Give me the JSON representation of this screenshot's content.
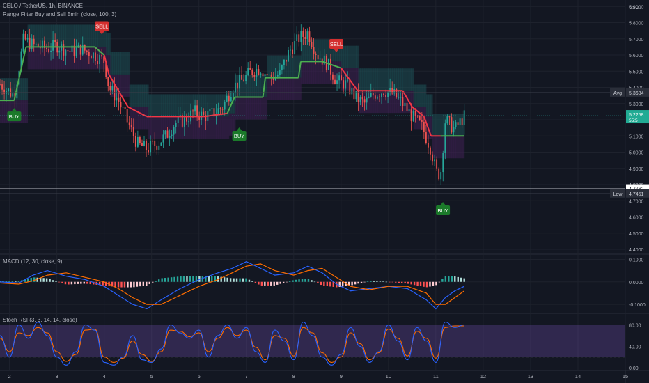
{
  "chart_data": {
    "type": "candlestick",
    "symbol_line": "CELO / TetherUS, 1h, BINANCE",
    "indicator_line": "Range Filter Buy and Sell 5min (close, 100, 3)",
    "currency": "USDT",
    "price_axis": {
      "min": 4.4,
      "max": 5.9,
      "ticks": [
        "5.9000",
        "5.8000",
        "5.7000",
        "5.6000",
        "5.5000",
        "5.4000",
        "5.3000",
        "5.2000",
        "5.1000",
        "5.0000",
        "4.9000",
        "4.8000",
        "4.7000",
        "4.6000",
        "4.5000",
        "4.4000"
      ]
    },
    "x_axis": {
      "min": 1.8,
      "max": 15,
      "ticks": [
        2,
        3,
        4,
        5,
        6,
        7,
        8,
        9,
        10,
        11,
        12,
        13,
        14,
        15
      ],
      "tick_labels": [
        "2",
        "3",
        "4",
        "5",
        "6",
        "7",
        "8",
        "9",
        "10",
        "11",
        "12",
        "13",
        "14",
        "15"
      ]
    },
    "price_labels": {
      "high": {
        "label": "High",
        "value": "5.9828",
        "price": 5.9828
      },
      "avg": {
        "label": "Avg",
        "value": "5.3684",
        "price": 5.3684
      },
      "last": {
        "value": "5.2258",
        "countdown": "55:5",
        "price": 5.2258
      },
      "marker": {
        "value": "4.7762",
        "price": 4.7762
      },
      "low": {
        "label": "Low",
        "value": "4.7451",
        "price": 4.7451
      }
    },
    "close_series": {
      "x": [
        1.8,
        2.1,
        2.3,
        2.5,
        2.8,
        3.0,
        3.3,
        3.5,
        3.8,
        4.0,
        4.1,
        4.3,
        4.5,
        4.7,
        4.9,
        5.1,
        5.3,
        5.5,
        5.7,
        5.9,
        6.1,
        6.3,
        6.5,
        6.7,
        6.9,
        7.1,
        7.3,
        7.5,
        7.7,
        7.9,
        8.1,
        8.3,
        8.5,
        8.7,
        8.9,
        9.1,
        9.3,
        9.5,
        9.7,
        9.9,
        10.1,
        10.3,
        10.5,
        10.7,
        10.9,
        11.0,
        11.1,
        11.2,
        11.4,
        11.6
      ],
      "close": [
        5.42,
        5.35,
        5.7,
        5.66,
        5.64,
        5.66,
        5.62,
        5.64,
        5.6,
        5.56,
        5.4,
        5.32,
        5.18,
        5.05,
        5.02,
        5.05,
        5.1,
        5.18,
        5.2,
        5.25,
        5.22,
        5.24,
        5.28,
        5.4,
        5.44,
        5.5,
        5.52,
        5.46,
        5.48,
        5.62,
        5.7,
        5.74,
        5.6,
        5.55,
        5.44,
        5.42,
        5.34,
        5.3,
        5.36,
        5.38,
        5.36,
        5.3,
        5.22,
        5.16,
        5.02,
        4.88,
        4.86,
        5.2,
        5.14,
        5.22
      ]
    },
    "range_filter": {
      "x": [
        1.8,
        2.1,
        2.35,
        3.3,
        3.8,
        4.0,
        4.1,
        4.5,
        4.9,
        5.0,
        6.1,
        6.6,
        6.75,
        7.35,
        7.4,
        8.1,
        8.15,
        8.6,
        9.0,
        9.35,
        9.4,
        10.3,
        10.5,
        10.75,
        10.9,
        11.1,
        11.15,
        11.6
      ],
      "value": [
        5.32,
        5.32,
        5.65,
        5.65,
        5.65,
        5.6,
        5.48,
        5.28,
        5.22,
        5.22,
        5.22,
        5.24,
        5.34,
        5.34,
        5.46,
        5.46,
        5.56,
        5.56,
        5.52,
        5.38,
        5.38,
        5.38,
        5.28,
        5.22,
        5.1,
        5.1,
        5.1,
        5.1
      ],
      "state": [
        "bull",
        "bull",
        "bull",
        "bull",
        "bull",
        "bear",
        "bear",
        "bear",
        "bear",
        "bear",
        "bear",
        "bull",
        "bull",
        "bull",
        "bull",
        "bull",
        "bull",
        "bull",
        "bear",
        "bear",
        "bear",
        "bear",
        "bear",
        "bear",
        "bear",
        "bull",
        "bull",
        "bull"
      ]
    },
    "signals": [
      {
        "label": "BUY",
        "x": 2.1,
        "price": 5.32,
        "position": "below"
      },
      {
        "label": "SELL",
        "x": 3.95,
        "price": 5.68,
        "position": "above"
      },
      {
        "label": "BUY",
        "x": 6.85,
        "price": 5.2,
        "position": "below"
      },
      {
        "label": "SELL",
        "x": 8.9,
        "price": 5.57,
        "position": "above"
      },
      {
        "label": "BUY",
        "x": 11.15,
        "price": 4.74,
        "position": "below"
      }
    ],
    "macd": {
      "title": "MACD (12, 30, close, 9)",
      "ticks": [
        "0.1000",
        "0.0000",
        "-0.1000"
      ],
      "range": [
        -0.14,
        0.12
      ],
      "macd_line": {
        "x": [
          1.8,
          2.2,
          2.5,
          2.8,
          3.2,
          3.6,
          4.0,
          4.3,
          4.6,
          4.9,
          5.2,
          5.6,
          6.0,
          6.4,
          6.7,
          7.0,
          7.3,
          7.6,
          8.0,
          8.3,
          8.6,
          8.9,
          9.2,
          9.6,
          10.0,
          10.4,
          10.8,
          11.0,
          11.2,
          11.4,
          11.6
        ],
        "value": [
          0.0,
          -0.005,
          0.03,
          0.05,
          0.025,
          0.01,
          -0.02,
          -0.06,
          -0.1,
          -0.12,
          -0.08,
          -0.03,
          0.01,
          0.04,
          0.06,
          0.09,
          0.06,
          0.03,
          0.04,
          0.07,
          0.04,
          -0.01,
          -0.04,
          -0.03,
          -0.02,
          -0.03,
          -0.08,
          -0.12,
          -0.07,
          -0.04,
          -0.02
        ]
      },
      "signal_line": {
        "x": [
          1.8,
          2.2,
          2.5,
          2.8,
          3.2,
          3.6,
          4.0,
          4.3,
          4.6,
          4.9,
          5.2,
          5.6,
          6.0,
          6.4,
          6.7,
          7.0,
          7.3,
          7.6,
          8.0,
          8.3,
          8.6,
          8.9,
          9.2,
          9.6,
          10.0,
          10.4,
          10.8,
          11.0,
          11.2,
          11.4,
          11.6
        ],
        "value": [
          -0.005,
          -0.01,
          0.005,
          0.03,
          0.04,
          0.02,
          0.0,
          -0.03,
          -0.07,
          -0.1,
          -0.1,
          -0.06,
          -0.02,
          0.01,
          0.04,
          0.07,
          0.08,
          0.05,
          0.03,
          0.05,
          0.06,
          0.02,
          -0.02,
          -0.035,
          -0.02,
          -0.02,
          -0.05,
          -0.1,
          -0.1,
          -0.07,
          -0.04
        ]
      }
    },
    "stoch_rsi": {
      "title": "Stoch RSI (3, 3, 14, 14, close)",
      "ticks": [
        "80.00",
        "40.00",
        "0.00"
      ],
      "range": [
        -5,
        100
      ],
      "bands": [
        80,
        20
      ],
      "k": {
        "x": [
          1.8,
          2.0,
          2.2,
          2.4,
          2.6,
          2.8,
          3.0,
          3.2,
          3.4,
          3.6,
          3.8,
          4.0,
          4.2,
          4.4,
          4.6,
          4.8,
          5.0,
          5.2,
          5.4,
          5.6,
          5.8,
          6.0,
          6.2,
          6.4,
          6.6,
          6.8,
          7.0,
          7.2,
          7.4,
          7.6,
          7.8,
          8.0,
          8.2,
          8.4,
          8.6,
          8.8,
          9.0,
          9.2,
          9.4,
          9.6,
          9.8,
          10.0,
          10.2,
          10.4,
          10.6,
          10.8,
          11.0,
          11.2,
          11.4,
          11.6
        ],
        "value": [
          60,
          20,
          80,
          55,
          85,
          60,
          20,
          5,
          30,
          80,
          70,
          10,
          5,
          20,
          60,
          15,
          10,
          35,
          80,
          65,
          55,
          70,
          20,
          60,
          80,
          55,
          75,
          30,
          10,
          70,
          50,
          15,
          85,
          60,
          20,
          5,
          25,
          75,
          40,
          10,
          30,
          80,
          50,
          15,
          75,
          50,
          10,
          85,
          75,
          80
        ]
      },
      "d": {
        "x": [
          1.8,
          2.0,
          2.2,
          2.4,
          2.6,
          2.8,
          3.0,
          3.2,
          3.4,
          3.6,
          3.8,
          4.0,
          4.2,
          4.4,
          4.6,
          4.8,
          5.0,
          5.2,
          5.4,
          5.6,
          5.8,
          6.0,
          6.2,
          6.4,
          6.6,
          6.8,
          7.0,
          7.2,
          7.4,
          7.6,
          7.8,
          8.0,
          8.2,
          8.4,
          8.6,
          8.8,
          9.0,
          9.2,
          9.4,
          9.6,
          9.8,
          10.0,
          10.2,
          10.4,
          10.6,
          10.8,
          11.0,
          11.2,
          11.4,
          11.6
        ],
        "value": [
          55,
          30,
          65,
          60,
          75,
          65,
          30,
          12,
          25,
          70,
          72,
          20,
          10,
          18,
          50,
          25,
          12,
          30,
          70,
          68,
          58,
          65,
          30,
          55,
          75,
          60,
          70,
          38,
          15,
          60,
          55,
          22,
          75,
          65,
          28,
          10,
          20,
          65,
          45,
          15,
          28,
          72,
          55,
          22,
          68,
          55,
          18,
          75,
          78,
          78
        ]
      }
    }
  }
}
